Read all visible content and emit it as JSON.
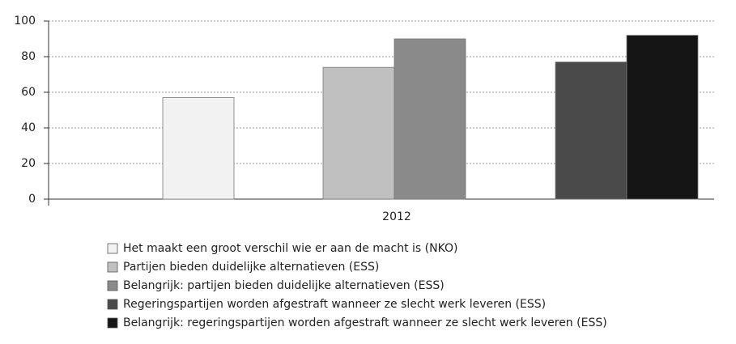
{
  "chart_data": {
    "type": "bar",
    "categories": [
      "2012"
    ],
    "series": [
      {
        "name": "Het maakt een groot verschil wie er aan de macht is (NKO)",
        "color": "#f2f2f2",
        "values": [
          57
        ]
      },
      {
        "name": "Partijen bieden duidelijke alternatieven (ESS)",
        "color": "#c0c0c0",
        "values": [
          74
        ]
      },
      {
        "name": "Belangrijk: partijen bieden duidelijke alternatieven (ESS)",
        "color": "#8a8a8a",
        "values": [
          90
        ]
      },
      {
        "name": "Regeringspartijen worden afgestraft wanneer ze slecht werk leveren (ESS)",
        "color": "#4a4a4a",
        "values": [
          77
        ]
      },
      {
        "name": "Belangrijk: regeringspartijen worden afgestraft wanneer ze slecht werk leveren (ESS)",
        "color": "#151515",
        "values": [
          92
        ]
      }
    ],
    "ylim": [
      0,
      100
    ],
    "yticks": [
      0,
      20,
      40,
      60,
      80,
      100
    ],
    "grid": true
  }
}
